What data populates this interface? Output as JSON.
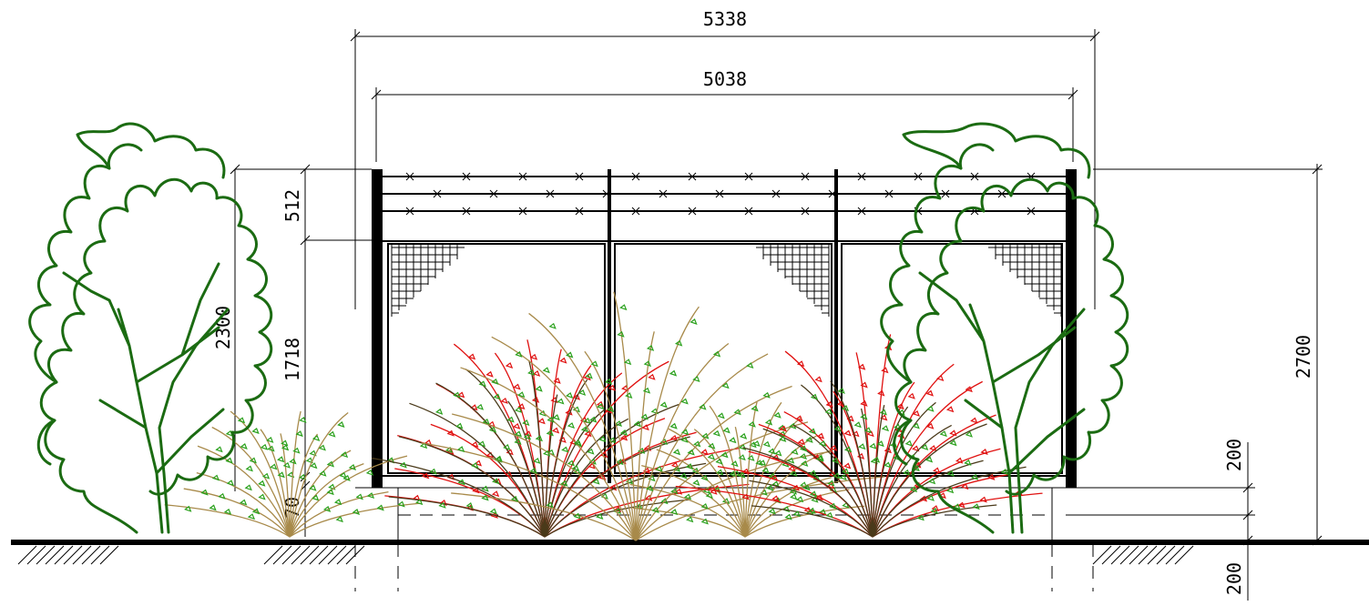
{
  "dimensions": {
    "overall_width": "5338",
    "inner_width": "5038",
    "total_height": "2700",
    "fence_height": "2300",
    "mesh_height": "1718",
    "barbed_height": "512",
    "lower_offset": "70",
    "plinth_height": "200",
    "footing_depth": "200"
  },
  "colors": {
    "tree": "#1b6b12",
    "shrub_green": "#2aa11c",
    "shrub_red": "#e0100f",
    "shrub_tan": "#a88a4a",
    "shrub_dark": "#4a3a1a",
    "line": "#000000"
  }
}
